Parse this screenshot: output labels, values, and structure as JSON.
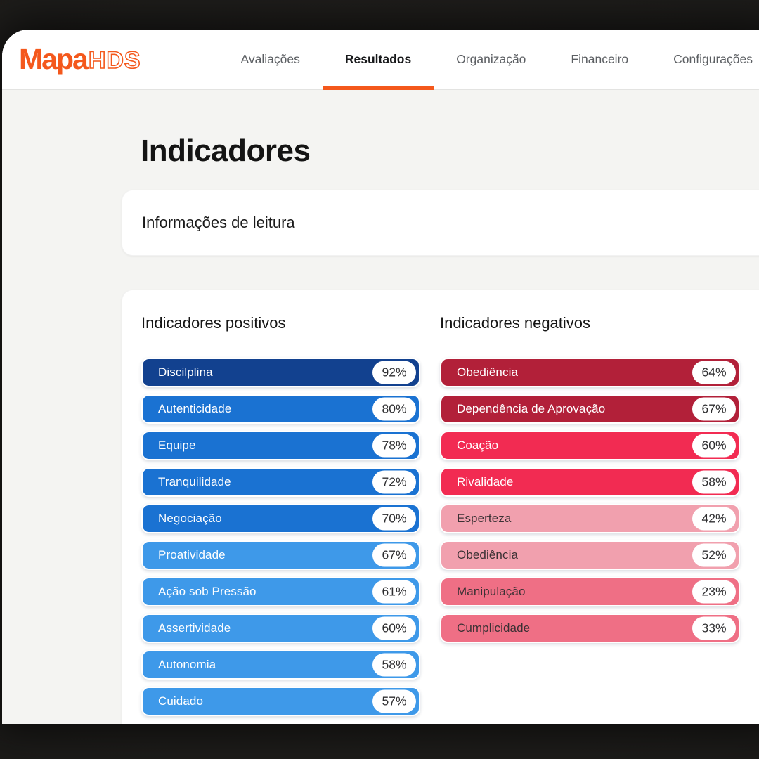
{
  "brand": {
    "name_solid": "Mapa",
    "name_outline": "HDS",
    "accent_color": "#F4581C"
  },
  "nav": {
    "tabs": [
      {
        "label": "Avaliações",
        "active": false
      },
      {
        "label": "Resultados",
        "active": true
      },
      {
        "label": "Organização",
        "active": false
      },
      {
        "label": "Financeiro",
        "active": false
      },
      {
        "label": "Configurações",
        "active": false
      }
    ]
  },
  "page": {
    "title": "Indicadores"
  },
  "info_card": {
    "title": "Informações de leitura"
  },
  "indicators": {
    "positive": {
      "heading": "Indicadores positivos",
      "items": [
        {
          "label": "Discilplina",
          "value": "92%",
          "color": "#12418F",
          "text_color": "#ffffff"
        },
        {
          "label": "Autenticidade",
          "value": "80%",
          "color": "#1A72D2",
          "text_color": "#ffffff"
        },
        {
          "label": "Equipe",
          "value": "78%",
          "color": "#1A72D2",
          "text_color": "#ffffff"
        },
        {
          "label": "Tranquilidade",
          "value": "72%",
          "color": "#1A72D2",
          "text_color": "#ffffff"
        },
        {
          "label": "Negociação",
          "value": "70%",
          "color": "#1A72D2",
          "text_color": "#ffffff"
        },
        {
          "label": "Proatividade",
          "value": "67%",
          "color": "#3E99E9",
          "text_color": "#ffffff"
        },
        {
          "label": "Ação sob Pressão",
          "value": "61%",
          "color": "#3E99E9",
          "text_color": "#ffffff"
        },
        {
          "label": "Assertividade",
          "value": "60%",
          "color": "#3E99E9",
          "text_color": "#ffffff"
        },
        {
          "label": "Autonomia",
          "value": "58%",
          "color": "#3E99E9",
          "text_color": "#ffffff"
        },
        {
          "label": "Cuidado",
          "value": "57%",
          "color": "#3E99E9",
          "text_color": "#ffffff"
        }
      ],
      "partial_pill_color": "#3E99E9"
    },
    "negative": {
      "heading": "Indicadores negativos",
      "items": [
        {
          "label": "Obediência",
          "value": "64%",
          "color": "#B22039",
          "text_color": "#ffffff"
        },
        {
          "label": "Dependência de Aprovação",
          "value": "67%",
          "color": "#B22039",
          "text_color": "#ffffff"
        },
        {
          "label": "Coação",
          "value": "60%",
          "color": "#F22B52",
          "text_color": "#ffffff"
        },
        {
          "label": "Rivalidade",
          "value": "58%",
          "color": "#F22B52",
          "text_color": "#ffffff"
        },
        {
          "label": "Esperteza",
          "value": "42%",
          "color": "#F1A0AE",
          "text_color": "#3A3134"
        },
        {
          "label": "Obediência",
          "value": "52%",
          "color": "#F1A0AE",
          "text_color": "#3A3134"
        },
        {
          "label": "Manipulação",
          "value": "23%",
          "color": "#EF6F85",
          "text_color": "#3A3134"
        },
        {
          "label": "Cumplicidade",
          "value": "33%",
          "color": "#EF6F85",
          "text_color": "#3A3134"
        }
      ]
    }
  }
}
